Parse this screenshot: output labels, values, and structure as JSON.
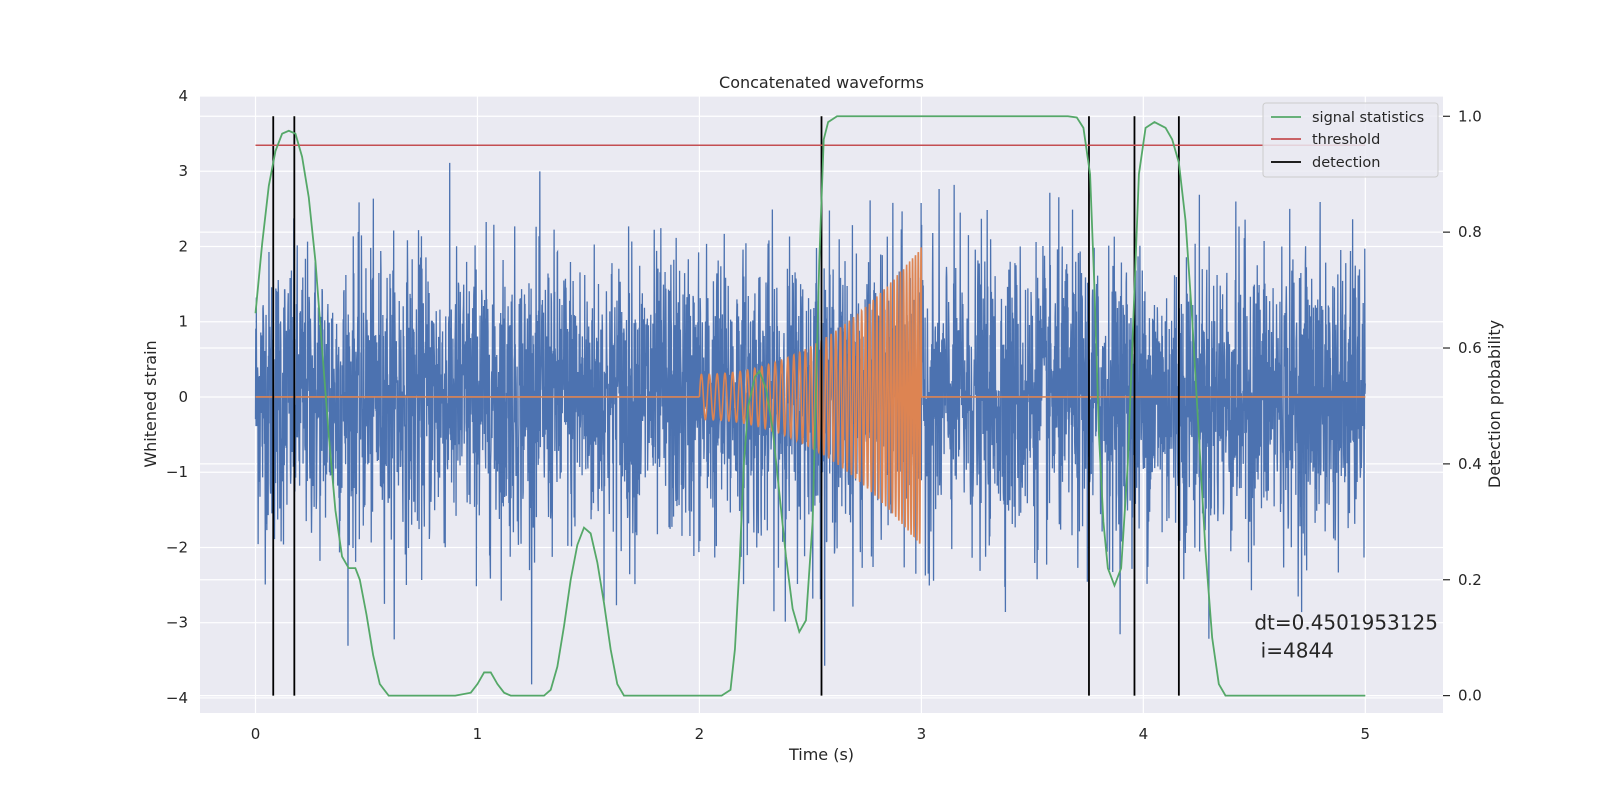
{
  "chart_data": {
    "type": "line",
    "title": "Concatenated waveforms",
    "xlabel": "Time (s)",
    "ylabel": "Whitened strain",
    "ylabel_right": "Detection probability",
    "xlim": [
      -0.25,
      5.35
    ],
    "ylim": [
      -4.2,
      4.0
    ],
    "ylim_right": [
      -0.03,
      1.035
    ],
    "x_ticks": [
      0,
      1,
      2,
      3,
      4,
      5
    ],
    "x_tick_labels": [
      "0",
      "1",
      "2",
      "3",
      "4",
      "5"
    ],
    "y_ticks": [
      4,
      3,
      2,
      1,
      0,
      -1,
      -2,
      -3,
      -4
    ],
    "y_tick_labels": [
      "4",
      "3",
      "2",
      "1",
      "0",
      "−1",
      "−2",
      "−3",
      "−4"
    ],
    "y_right_ticks": [
      1.0,
      0.8,
      0.6,
      0.4,
      0.2,
      0.0
    ],
    "y_right_tick_labels": [
      "1.0",
      "0.8",
      "0.6",
      "0.4",
      "0.2",
      "0.0"
    ],
    "grid": true,
    "background": "#eaeaf2",
    "legend_placement": "top-right",
    "legend": [
      {
        "label": "signal statistics",
        "color": "#55a868"
      },
      {
        "label": "threshold",
        "color": "#c44e52"
      },
      {
        "label": "detection",
        "color": "#000000"
      }
    ],
    "noise": {
      "color": "#4c72b0",
      "x_range": [
        0,
        5
      ],
      "typical_range": [
        -2.4,
        2.4
      ],
      "max_peak": 3.55,
      "min_peak": -3.9
    },
    "injected_signal": {
      "color": "#dd8452",
      "x_range": [
        2.0,
        3.0
      ],
      "start_amplitude": 0.3,
      "end_amplitude": 2.0,
      "baseline": 0
    },
    "signal_statistics": {
      "color": "#55a868",
      "axis": "right",
      "points": [
        [
          0.0,
          0.66
        ],
        [
          0.03,
          0.78
        ],
        [
          0.06,
          0.88
        ],
        [
          0.09,
          0.94
        ],
        [
          0.12,
          0.97
        ],
        [
          0.15,
          0.975
        ],
        [
          0.18,
          0.97
        ],
        [
          0.21,
          0.93
        ],
        [
          0.24,
          0.86
        ],
        [
          0.27,
          0.75
        ],
        [
          0.3,
          0.6
        ],
        [
          0.33,
          0.45
        ],
        [
          0.36,
          0.32
        ],
        [
          0.39,
          0.24
        ],
        [
          0.42,
          0.22
        ],
        [
          0.45,
          0.22
        ],
        [
          0.47,
          0.2
        ],
        [
          0.5,
          0.14
        ],
        [
          0.53,
          0.07
        ],
        [
          0.56,
          0.02
        ],
        [
          0.6,
          0.0
        ],
        [
          0.7,
          0.0
        ],
        [
          0.9,
          0.0
        ],
        [
          0.97,
          0.005
        ],
        [
          1.0,
          0.02
        ],
        [
          1.03,
          0.04
        ],
        [
          1.06,
          0.04
        ],
        [
          1.09,
          0.02
        ],
        [
          1.12,
          0.005
        ],
        [
          1.15,
          0.0
        ],
        [
          1.3,
          0.0
        ],
        [
          1.33,
          0.01
        ],
        [
          1.36,
          0.05
        ],
        [
          1.39,
          0.12
        ],
        [
          1.42,
          0.2
        ],
        [
          1.45,
          0.26
        ],
        [
          1.48,
          0.29
        ],
        [
          1.51,
          0.28
        ],
        [
          1.54,
          0.23
        ],
        [
          1.57,
          0.16
        ],
        [
          1.6,
          0.08
        ],
        [
          1.63,
          0.02
        ],
        [
          1.66,
          0.0
        ],
        [
          1.8,
          0.0
        ],
        [
          2.1,
          0.0
        ],
        [
          2.14,
          0.01
        ],
        [
          2.16,
          0.08
        ],
        [
          2.18,
          0.22
        ],
        [
          2.2,
          0.4
        ],
        [
          2.22,
          0.5
        ],
        [
          2.25,
          0.55
        ],
        [
          2.27,
          0.56
        ],
        [
          2.3,
          0.53
        ],
        [
          2.33,
          0.46
        ],
        [
          2.36,
          0.35
        ],
        [
          2.39,
          0.24
        ],
        [
          2.42,
          0.15
        ],
        [
          2.45,
          0.11
        ],
        [
          2.48,
          0.13
        ],
        [
          2.51,
          0.3
        ],
        [
          2.54,
          0.75
        ],
        [
          2.56,
          0.96
        ],
        [
          2.58,
          0.99
        ],
        [
          2.62,
          1.0
        ],
        [
          3.0,
          1.0
        ],
        [
          3.66,
          1.0
        ],
        [
          3.7,
          0.998
        ],
        [
          3.73,
          0.98
        ],
        [
          3.76,
          0.9
        ],
        [
          3.78,
          0.7
        ],
        [
          3.8,
          0.45
        ],
        [
          3.82,
          0.3
        ],
        [
          3.84,
          0.22
        ],
        [
          3.87,
          0.19
        ],
        [
          3.9,
          0.22
        ],
        [
          3.93,
          0.4
        ],
        [
          3.96,
          0.7
        ],
        [
          3.98,
          0.9
        ],
        [
          4.01,
          0.98
        ],
        [
          4.05,
          0.99
        ],
        [
          4.1,
          0.98
        ],
        [
          4.13,
          0.96
        ],
        [
          4.16,
          0.92
        ],
        [
          4.19,
          0.82
        ],
        [
          4.22,
          0.65
        ],
        [
          4.25,
          0.45
        ],
        [
          4.28,
          0.25
        ],
        [
          4.31,
          0.1
        ],
        [
          4.34,
          0.02
        ],
        [
          4.37,
          0.0
        ],
        [
          4.6,
          0.0
        ],
        [
          5.0,
          0.0
        ]
      ]
    },
    "threshold": {
      "color": "#c44e52",
      "axis": "right",
      "value": 0.95,
      "x_range": [
        0,
        5
      ]
    },
    "detections": {
      "color": "#000000",
      "x": [
        0.08,
        0.175,
        2.55,
        3.755,
        3.96,
        4.16
      ],
      "axis_range": [
        0.0,
        1.0
      ]
    },
    "annotation": {
      "line1": "dt=0.4501953125",
      "line2": " i=4844",
      "x": 4.5,
      "y": -3.0
    }
  }
}
